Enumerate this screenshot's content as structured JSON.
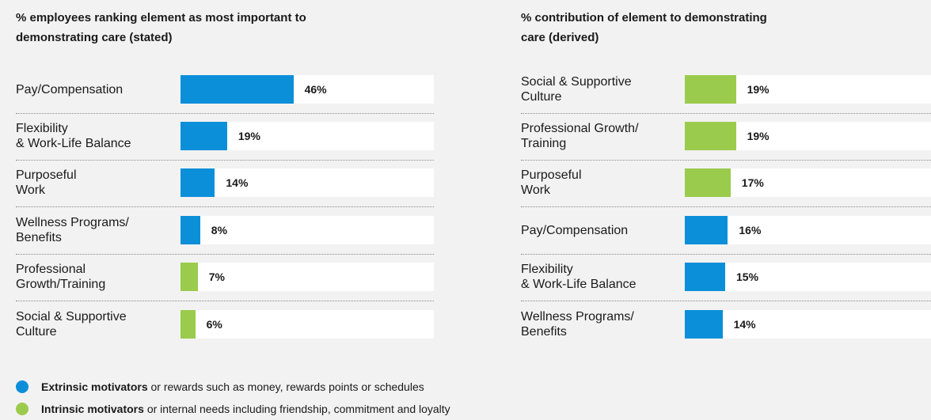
{
  "chart_data": [
    {
      "type": "bar",
      "orientation": "horizontal",
      "title": "% employees ranking element as most important to\ndemonstrating care (stated)",
      "categories": [
        "Pay/Compensation",
        "Flexibility\n& Work-Life Balance",
        "Purposeful\nWork",
        "Wellness Programs/\nBenefits",
        "Professional\nGrowth/Training",
        "Social & Supportive\nCulture"
      ],
      "values": [
        46,
        19,
        14,
        8,
        7,
        6
      ],
      "value_labels": [
        "46%",
        "19%",
        "14%",
        "8%",
        "7%",
        "6%"
      ],
      "colors": [
        "#0b8fd9",
        "#0b8fd9",
        "#0b8fd9",
        "#0b8fd9",
        "#9bcb4c",
        "#9bcb4c"
      ]
    },
    {
      "type": "bar",
      "orientation": "horizontal",
      "title": "% contribution of element to demonstrating\ncare (derived)",
      "categories": [
        "Social & Supportive\nCulture",
        "Professional Growth/\nTraining",
        "Purposeful\nWork",
        "Pay/Compensation",
        "Flexibility\n& Work-Life Balance",
        "Wellness Programs/\nBenefits"
      ],
      "values": [
        19,
        19,
        17,
        16,
        15,
        14
      ],
      "value_labels": [
        "19%",
        "19%",
        "17%",
        "16%",
        "15%",
        "14%"
      ],
      "colors": [
        "#9bcb4c",
        "#9bcb4c",
        "#9bcb4c",
        "#0b8fd9",
        "#0b8fd9",
        "#0b8fd9"
      ]
    }
  ],
  "legend": [
    {
      "name": "Extrinsic motivators",
      "color": "#0b8fd9",
      "text": "or rewards such as money, rewards points or schedules"
    },
    {
      "name": "Intrinsic motivators",
      "color": "#9bcb4c",
      "text": "or internal needs including friendship, commitment and loyalty"
    }
  ]
}
